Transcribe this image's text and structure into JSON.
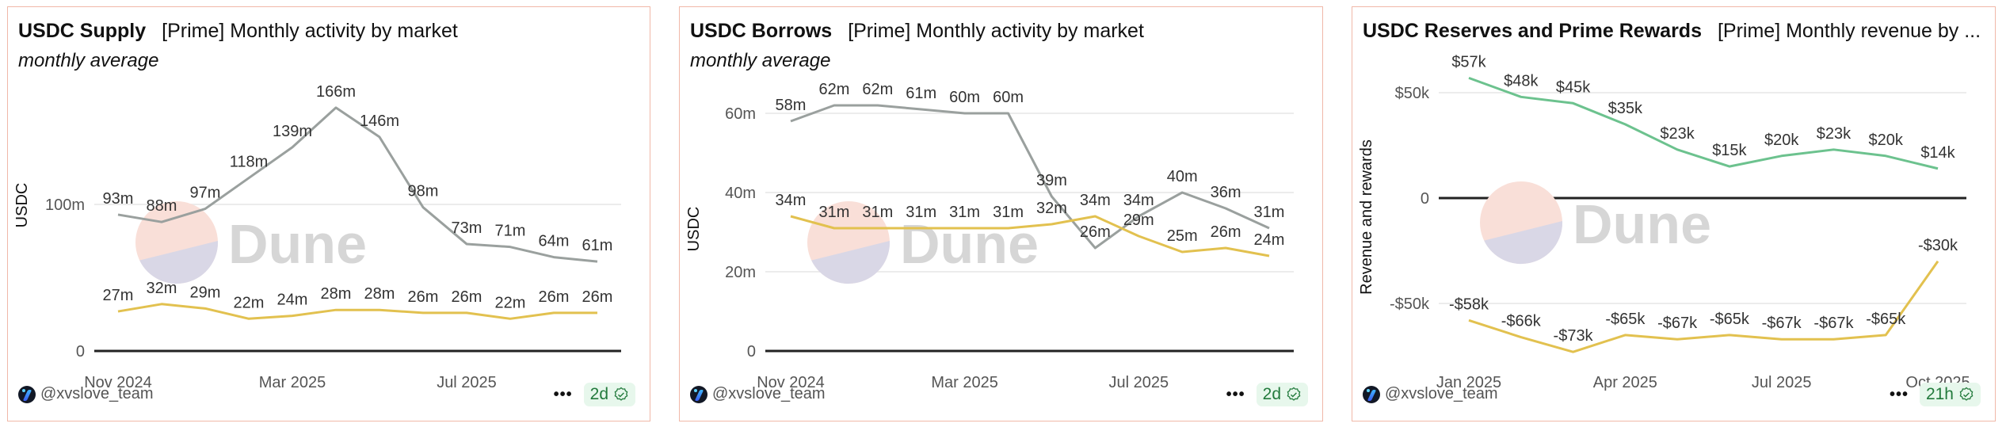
{
  "panels": [
    {
      "title": "USDC Supply",
      "subtitle_title": "[Prime] Monthly activity by market",
      "subtitle": "monthly average",
      "author": "@xvslove_team",
      "more_icon": "more-dots-icon",
      "freshness": "2d",
      "freshness_icon": "verified-badge-icon",
      "watermark": "Dune"
    },
    {
      "title": "USDC Borrows",
      "subtitle_title": "[Prime] Monthly activity by market",
      "subtitle": "monthly average",
      "author": "@xvslove_team",
      "more_icon": "more-dots-icon",
      "freshness": "2d",
      "freshness_icon": "verified-badge-icon",
      "watermark": "Dune"
    },
    {
      "title": "USDC Reserves and Prime Rewards",
      "subtitle_title": "[Prime] Monthly revenue by ...",
      "subtitle": "",
      "author": "@xvslove_team",
      "more_icon": "more-dots-icon",
      "freshness": "21h",
      "freshness_icon": "verified-badge-icon",
      "watermark": "Dune"
    }
  ],
  "colors": {
    "gray_series": "#9aa09e",
    "yellow_series": "#e2c14f",
    "green_series": "#6cc28e",
    "panel_border": "#f0b8a8",
    "badge_bg": "#e7f7ec",
    "badge_text": "#227a3c"
  },
  "chart_data": [
    {
      "type": "line",
      "title": "USDC Supply",
      "subtitle": "monthly average",
      "xlabel": "",
      "ylabel": "USDC",
      "x": [
        "Nov 2024",
        "Dec 2024",
        "Jan 2025",
        "Feb 2025",
        "Mar 2025",
        "Apr 2025",
        "May 2025",
        "Jun 2025",
        "Jul 2025",
        "Aug 2025",
        "Sep 2025",
        "Oct 2025"
      ],
      "xticks": [
        "Nov 2024",
        "Mar 2025",
        "Jul 2025"
      ],
      "yticks": [
        "0",
        "100m"
      ],
      "ylim": [
        0,
        170
      ],
      "grid": true,
      "series": [
        {
          "name": "series-gray",
          "color": "#9aa09e",
          "values": [
            93,
            88,
            97,
            118,
            139,
            166,
            146,
            98,
            73,
            71,
            64,
            61
          ],
          "labels": [
            "93m",
            "88m",
            "97m",
            "118m",
            "139m",
            "166m",
            "146m",
            "98m",
            "73m",
            "71m",
            "64m",
            "61m"
          ]
        },
        {
          "name": "series-yellow",
          "color": "#e2c14f",
          "values": [
            27,
            32,
            29,
            22,
            24,
            28,
            28,
            26,
            26,
            22,
            26,
            26
          ],
          "labels": [
            "27m",
            "32m",
            "29m",
            "22m",
            "24m",
            "28m",
            "28m",
            "26m",
            "26m",
            "22m",
            "26m",
            "26m"
          ]
        }
      ]
    },
    {
      "type": "line",
      "title": "USDC Borrows",
      "subtitle": "monthly average",
      "xlabel": "",
      "ylabel": "USDC",
      "x": [
        "Nov 2024",
        "Dec 2024",
        "Jan 2025",
        "Feb 2025",
        "Mar 2025",
        "Apr 2025",
        "May 2025",
        "Jun 2025",
        "Jul 2025",
        "Aug 2025",
        "Sep 2025",
        "Oct 2025"
      ],
      "xticks": [
        "Nov 2024",
        "Mar 2025",
        "Jul 2025"
      ],
      "yticks": [
        "0",
        "20m",
        "40m",
        "60m"
      ],
      "ylim": [
        0,
        62
      ],
      "grid": true,
      "series": [
        {
          "name": "series-gray",
          "color": "#9aa09e",
          "values": [
            58,
            62,
            62,
            61,
            60,
            60,
            39,
            26,
            34,
            40,
            36,
            31
          ],
          "labels": [
            "58m",
            "62m",
            "62m",
            "61m",
            "60m",
            "60m",
            "39m",
            "26m",
            "34m",
            "40m",
            "36m",
            "31m"
          ]
        },
        {
          "name": "series-yellow",
          "color": "#e2c14f",
          "values": [
            34,
            31,
            31,
            31,
            31,
            31,
            32,
            34,
            29,
            25,
            26,
            24
          ],
          "labels": [
            "34m",
            "31m",
            "31m",
            "31m",
            "31m",
            "31m",
            "32m",
            "34m",
            "29m",
            "25m",
            "26m",
            "24m"
          ]
        }
      ]
    },
    {
      "type": "line",
      "title": "USDC Reserves and Prime Rewards",
      "subtitle": "",
      "xlabel": "",
      "ylabel": "Revenue and rewards",
      "x": [
        "Jan 2025",
        "Feb 2025",
        "Mar 2025",
        "Apr 2025",
        "May 2025",
        "Jun 2025",
        "Jul 2025",
        "Aug 2025",
        "Sep 2025",
        "Oct 2025"
      ],
      "xticks": [
        "Jan 2025",
        "Apr 2025",
        "Jul 2025",
        "Oct 2025"
      ],
      "yticks": [
        "-$50k",
        "0",
        "$50k"
      ],
      "ylim": [
        -73,
        57
      ],
      "grid": true,
      "series": [
        {
          "name": "series-green",
          "color": "#6cc28e",
          "values": [
            57,
            48,
            45,
            35,
            23,
            15,
            20,
            23,
            20,
            14
          ],
          "labels": [
            "$57k",
            "$48k",
            "$45k",
            "$35k",
            "$23k",
            "$15k",
            "$20k",
            "$23k",
            "$20k",
            "$14k"
          ]
        },
        {
          "name": "series-yellow",
          "color": "#e2c14f",
          "values": [
            -58,
            -66,
            -73,
            -65,
            -67,
            -65,
            -67,
            -67,
            -65,
            -30
          ],
          "labels": [
            "-$58k",
            "-$66k",
            "-$73k",
            "-$65k",
            "-$67k",
            "-$65k",
            "-$67k",
            "-$67k",
            "-$65k",
            "-$30k"
          ]
        }
      ]
    }
  ]
}
